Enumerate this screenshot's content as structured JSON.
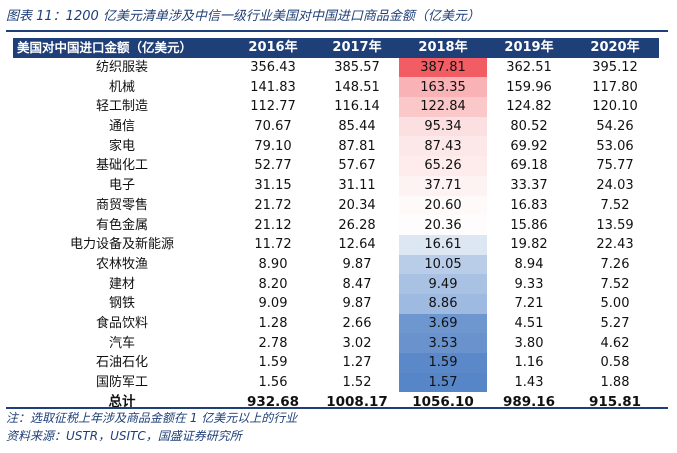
{
  "title": "图表 11：1200 亿美元清单涉及中信一级行业美国对中国进口商品金额（亿美元）",
  "table": {
    "row_header": "美国对中国进口金额（亿美元）",
    "columns": [
      "2016年",
      "2017年",
      "2018年",
      "2019年",
      "2020年"
    ],
    "rows": [
      {
        "label": "纺织服装",
        "values": [
          "356.43",
          "385.57",
          "387.81",
          "362.51",
          "395.12"
        ]
      },
      {
        "label": "机械",
        "values": [
          "141.83",
          "148.51",
          "163.35",
          "159.96",
          "117.80"
        ]
      },
      {
        "label": "轻工制造",
        "values": [
          "112.77",
          "116.14",
          "122.84",
          "124.82",
          "120.10"
        ]
      },
      {
        "label": "通信",
        "values": [
          "70.67",
          "85.44",
          "95.34",
          "80.52",
          "54.26"
        ]
      },
      {
        "label": "家电",
        "values": [
          "79.10",
          "87.81",
          "87.43",
          "69.92",
          "53.06"
        ]
      },
      {
        "label": "基础化工",
        "values": [
          "52.77",
          "57.67",
          "65.26",
          "69.18",
          "75.77"
        ]
      },
      {
        "label": "电子",
        "values": [
          "31.15",
          "31.11",
          "37.71",
          "33.37",
          "24.03"
        ]
      },
      {
        "label": "商贸零售",
        "values": [
          "21.72",
          "20.34",
          "20.60",
          "16.83",
          "7.52"
        ]
      },
      {
        "label": "有色金属",
        "values": [
          "21.12",
          "26.28",
          "20.36",
          "15.86",
          "13.59"
        ]
      },
      {
        "label": "电力设备及新能源",
        "values": [
          "11.72",
          "12.64",
          "16.61",
          "19.82",
          "22.43"
        ]
      },
      {
        "label": "农林牧渔",
        "values": [
          "8.90",
          "9.87",
          "10.05",
          "8.94",
          "7.26"
        ]
      },
      {
        "label": "建材",
        "values": [
          "8.20",
          "8.47",
          "9.49",
          "9.33",
          "7.52"
        ]
      },
      {
        "label": "钢铁",
        "values": [
          "9.09",
          "9.87",
          "8.86",
          "7.21",
          "5.00"
        ]
      },
      {
        "label": "食品饮料",
        "values": [
          "1.28",
          "2.66",
          "3.69",
          "4.51",
          "5.27"
        ]
      },
      {
        "label": "汽车",
        "values": [
          "2.78",
          "3.02",
          "3.53",
          "3.80",
          "4.62"
        ]
      },
      {
        "label": "石油石化",
        "values": [
          "1.59",
          "1.27",
          "1.59",
          "1.16",
          "0.58"
        ]
      },
      {
        "label": "国防军工",
        "values": [
          "1.56",
          "1.52",
          "1.57",
          "1.43",
          "1.88"
        ]
      }
    ],
    "total": {
      "label": "总计",
      "values": [
        "932.68",
        "1008.17",
        "1056.10",
        "989.16",
        "915.81"
      ]
    },
    "heatmap_colors": [
      "#f25d63",
      "#f9b2b5",
      "#fbc8ca",
      "#fcdfe0",
      "#fde8e9",
      "#feecec",
      "#fef3f3",
      "#fefafa",
      "#fefcfc",
      "#dde6f3",
      "#b9cde9",
      "#a9c2e4",
      "#9fbae0",
      "#6e97d0",
      "#6a93ce",
      "#5a88c9",
      "#5685c8"
    ]
  },
  "notes": [
    "注：选取征税上年涉及商品金额在 1 亿美元以上的行业",
    "资料来源：USTR，USITC，国盛证券研究所"
  ]
}
